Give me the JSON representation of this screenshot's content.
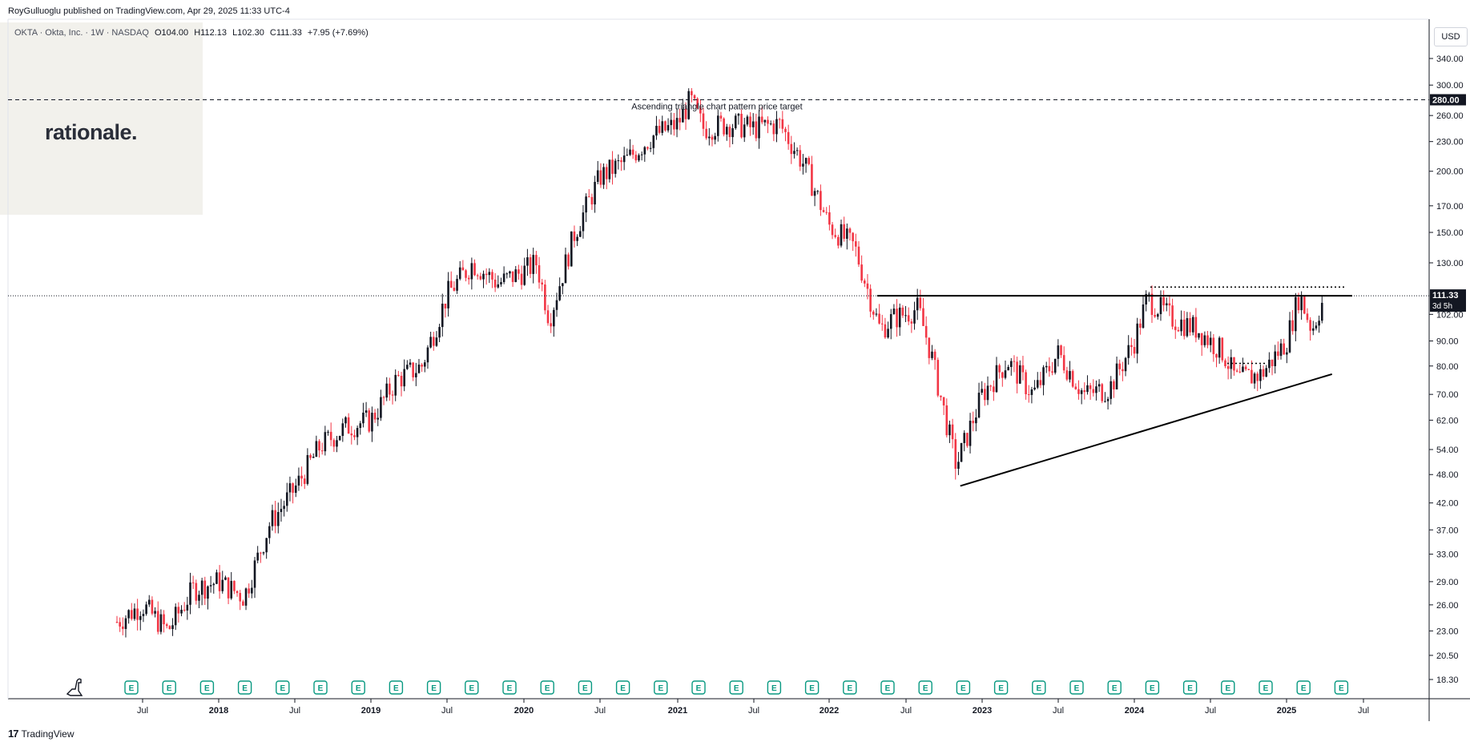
{
  "header": {
    "published_by": "RoyGulluoglu published on TradingView.com, Apr 29, 2025 11:33 UTC-4"
  },
  "legend": {
    "symbol": "OKTA · Okta, Inc. · 1W · NASDAQ",
    "open": "O104.00",
    "high": "H112.13",
    "low": "L102.30",
    "close": "C111.33",
    "change": "+7.95 (+7.69%)"
  },
  "watermark": {
    "text": "rationale."
  },
  "currency": "USD",
  "footer": {
    "logo": "17",
    "brand": "TradingView"
  },
  "price_scale": {
    "ticks": [
      "340.00",
      "300.00",
      "260.00",
      "230.00",
      "200.00",
      "170.00",
      "150.00",
      "130.00",
      "102.00",
      "90.00",
      "80.00",
      "70.00",
      "62.00",
      "54.00",
      "48.00",
      "42.00",
      "37.00",
      "33.00",
      "29.00",
      "26.00",
      "23.00",
      "20.50",
      "18.30"
    ],
    "target_label": "280.00",
    "last_price_label": "111.33",
    "countdown_label": "3d 5h"
  },
  "time_scale": {
    "ticks": [
      {
        "label": "Jul",
        "bold": false
      },
      {
        "label": "2018",
        "bold": true
      },
      {
        "label": "Jul",
        "bold": false
      },
      {
        "label": "2019",
        "bold": true
      },
      {
        "label": "Jul",
        "bold": false
      },
      {
        "label": "2020",
        "bold": true
      },
      {
        "label": "Jul",
        "bold": false
      },
      {
        "label": "2021",
        "bold": true
      },
      {
        "label": "Jul",
        "bold": false
      },
      {
        "label": "2022",
        "bold": true
      },
      {
        "label": "Jul",
        "bold": false
      },
      {
        "label": "2023",
        "bold": true
      },
      {
        "label": "Jul",
        "bold": false
      },
      {
        "label": "2024",
        "bold": true
      },
      {
        "label": "Jul",
        "bold": false
      },
      {
        "label": "2025",
        "bold": true
      },
      {
        "label": "Jul",
        "bold": false
      }
    ]
  },
  "annotation": {
    "text": "Ascending triangle chart pattern price target"
  },
  "earnings_marker": {
    "label": "E",
    "count": 33
  },
  "colors": {
    "up": "#089981",
    "down": "#f23645",
    "candle_up": "#131722",
    "line": "#000000"
  },
  "chart_data": {
    "type": "candlestick",
    "symbol": "OKTA",
    "interval": "1W",
    "scale": "log",
    "x": [
      "2017-05",
      "2017-07",
      "2017-09",
      "2017-11",
      "2018-01",
      "2018-03",
      "2018-05",
      "2018-07",
      "2018-09",
      "2018-11",
      "2019-01",
      "2019-03",
      "2019-05",
      "2019-07",
      "2019-09",
      "2019-11",
      "2020-01",
      "2020-02",
      "2020-03",
      "2020-05",
      "2020-07",
      "2020-09",
      "2020-11",
      "2021-01",
      "2021-02",
      "2021-03",
      "2021-05",
      "2021-07",
      "2021-09",
      "2021-11",
      "2022-01",
      "2022-03",
      "2022-05",
      "2022-06",
      "2022-08",
      "2022-09",
      "2022-11",
      "2023-01",
      "2023-03",
      "2023-05",
      "2023-07",
      "2023-09",
      "2023-11",
      "2024-01",
      "2024-02",
      "2024-04",
      "2024-06",
      "2024-08",
      "2024-09",
      "2024-11",
      "2025-01",
      "2025-02",
      "2025-03",
      "2025-04"
    ],
    "close": [
      24,
      26,
      23,
      28,
      29,
      27,
      38,
      45,
      55,
      60,
      62,
      75,
      80,
      112,
      130,
      118,
      125,
      130,
      100,
      150,
      195,
      210,
      235,
      250,
      280,
      245,
      250,
      245,
      250,
      205,
      155,
      140,
      95,
      100,
      105,
      85,
      50,
      70,
      82,
      70,
      85,
      70,
      72,
      90,
      110,
      100,
      95,
      85,
      75,
      77,
      90,
      112,
      95,
      111.33
    ],
    "target_price": 280.0,
    "resistance": 111.3,
    "support_line": [
      {
        "x": "2022-11",
        "y": 45.5
      },
      {
        "x": "2025-03",
        "y": 77
      }
    ],
    "last_price": 111.33
  }
}
